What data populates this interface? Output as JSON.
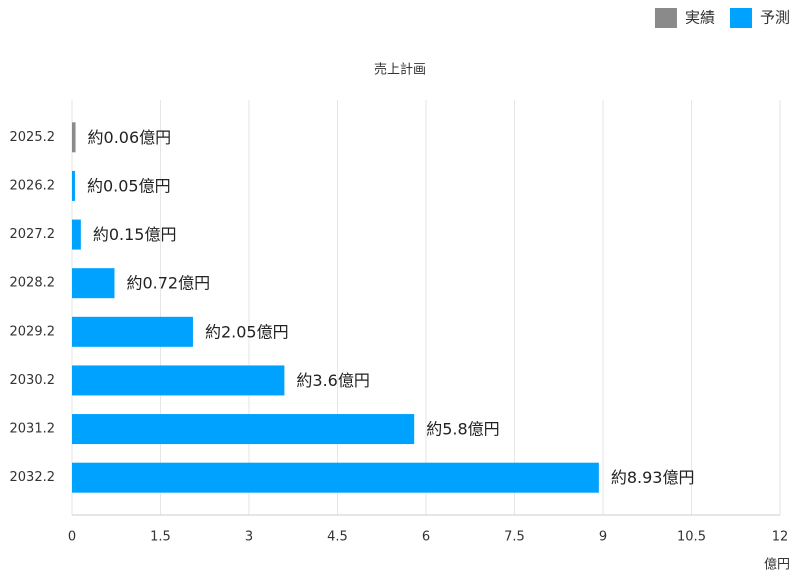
{
  "chart_data": {
    "type": "hbar",
    "title": "売上計画",
    "xlabel": "億円",
    "categories": [
      "2025.2",
      "2026.2",
      "2027.2",
      "2028.2",
      "2029.2",
      "2030.2",
      "2031.2",
      "2032.2"
    ],
    "series": [
      {
        "name": "実績",
        "color": "#8a8a8a",
        "values": [
          0.06,
          null,
          null,
          null,
          null,
          null,
          null,
          null
        ],
        "value_labels": [
          "約0.06億円",
          null,
          null,
          null,
          null,
          null,
          null,
          null
        ]
      },
      {
        "name": "予測",
        "color": "#00a2ff",
        "values": [
          null,
          0.05,
          0.15,
          0.72,
          2.05,
          3.6,
          5.8,
          8.93
        ],
        "value_labels": [
          null,
          "約0.05億円",
          "約0.15億円",
          "約0.72億円",
          "約2.05億円",
          "約3.6億円",
          "約5.8億円",
          "約8.93億円"
        ]
      }
    ],
    "xlim": [
      0,
      12
    ],
    "xticks": [
      0,
      1.5,
      3,
      4.5,
      6,
      7.5,
      9,
      10.5,
      12
    ],
    "grid": true,
    "legend": "top-right"
  }
}
